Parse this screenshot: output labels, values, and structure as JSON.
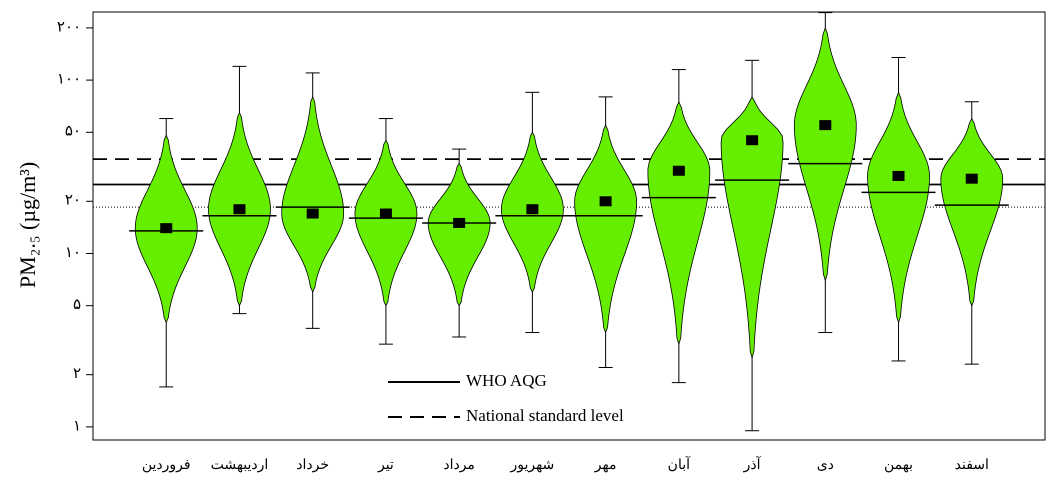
{
  "chart_data": {
    "type": "beanplot",
    "y_label": "PM₂.₅ (µg/m³)",
    "categories": [
      "فروردین",
      "اردیبهشت",
      "خرداد",
      "تیر",
      "مرداد",
      "شهریور",
      "مهر",
      "آبان",
      "آذر",
      "دی",
      "بهمن",
      "اسفند"
    ],
    "values": [
      13.5,
      16.5,
      18.5,
      16,
      15,
      16.5,
      16.5,
      21,
      26.5,
      33,
      22.5,
      19
    ],
    "peaks": [
      14,
      18,
      17,
      17,
      15,
      18,
      20,
      30,
      45,
      55,
      28,
      27
    ],
    "bean_low": [
      4,
      5,
      6,
      5,
      5,
      6,
      3.5,
      3,
      2.5,
      7,
      4,
      5
    ],
    "bean_high": [
      48,
      65,
      80,
      45,
      33,
      50,
      55,
      75,
      80,
      200,
      85,
      60
    ],
    "rug_min": [
      1.7,
      4.5,
      3.7,
      3,
      3.3,
      3.5,
      2.2,
      1.8,
      0.95,
      3.5,
      2.4,
      2.3
    ],
    "rug_max": [
      60,
      120,
      110,
      60,
      40,
      85,
      80,
      115,
      130,
      245,
      135,
      75
    ],
    "color": "#66ee00",
    "log_scale": true,
    "ylim": [
      0.84,
      247
    ],
    "yticks": [
      {
        "value": 1,
        "label": "۱"
      },
      {
        "value": 2,
        "label": "۲"
      },
      {
        "value": 5,
        "label": "۵"
      },
      {
        "value": 10,
        "label": "۱۰"
      },
      {
        "value": 20,
        "label": "۲۰"
      },
      {
        "value": 50,
        "label": "۵۰"
      },
      {
        "value": 100,
        "label": "۱۰۰"
      },
      {
        "value": 200,
        "label": "۲۰۰"
      }
    ],
    "reference_lines": [
      {
        "name": "WHO AQG",
        "value": 25,
        "style": "solid"
      },
      {
        "name": "National standard level",
        "value": 35,
        "style": "dashed"
      }
    ],
    "mean_line": {
      "value": 18.5,
      "style": "dotted"
    }
  }
}
